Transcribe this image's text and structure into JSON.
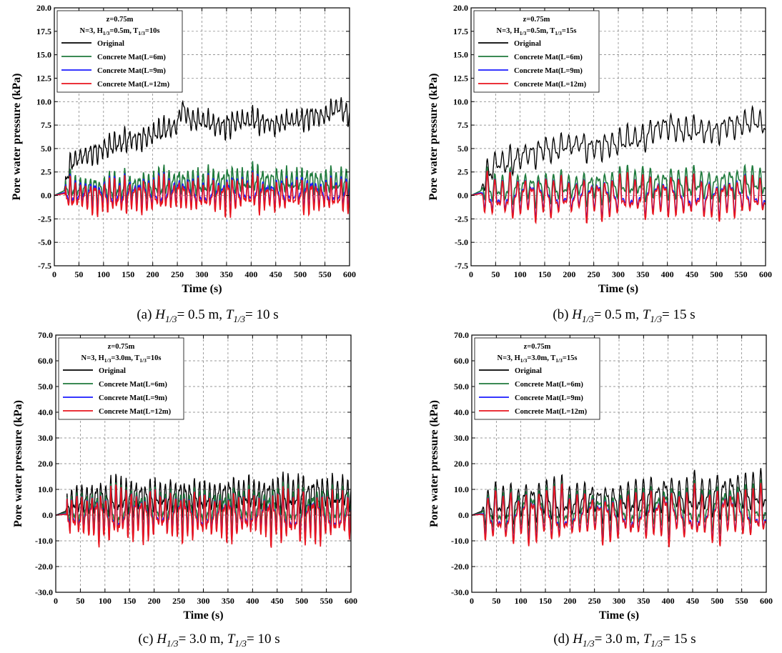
{
  "chart_data": [
    {
      "type": "line",
      "caption_id": "(a)",
      "caption_H": "0.5",
      "caption_T": "10",
      "xlabel": "Time (s)",
      "ylabel": "Pore water pressure (kPa)",
      "xlim": [
        0,
        600
      ],
      "ylim": [
        -7.5,
        20.0
      ],
      "xticks": [
        0,
        50,
        100,
        150,
        200,
        250,
        300,
        350,
        400,
        450,
        500,
        550,
        600
      ],
      "yticks": [
        "-7.5",
        "-5.0",
        "-2.5",
        "0.0",
        "2.5",
        "5.0",
        "7.5",
        "10.0",
        "12.5",
        "15.0",
        "17.5",
        "20.0"
      ],
      "grid": true,
      "legend_position": "top-left",
      "legend_header": [
        "z=0.75m",
        "N=3, H1/3=0.5m, T1/3=10s"
      ],
      "series": [
        {
          "name": "Original",
          "color": "#000000",
          "x": [
            0,
            20,
            25,
            35,
            50,
            75,
            100,
            125,
            150,
            175,
            200,
            225,
            250,
            260,
            275,
            300,
            325,
            350,
            375,
            400,
            425,
            450,
            475,
            500,
            525,
            550,
            575,
            600
          ],
          "y": [
            0,
            0.5,
            2.0,
            3.5,
            4.0,
            4.5,
            5.0,
            5.5,
            6.0,
            6.0,
            6.5,
            7.0,
            7.5,
            9.5,
            8.0,
            8.0,
            7.5,
            7.5,
            8.0,
            8.0,
            7.8,
            7.5,
            8.0,
            8.0,
            8.5,
            8.5,
            9.5,
            8.5
          ],
          "amplitude": 1.4
        },
        {
          "name": "Concrete Mat(L=6m)",
          "color": "#1f7a3c",
          "x": [
            0,
            20,
            25,
            50,
            100,
            150,
            200,
            250,
            300,
            350,
            400,
            450,
            500,
            550,
            600
          ],
          "y": [
            0,
            0.5,
            1.0,
            0.8,
            0.7,
            1.0,
            1.0,
            1.5,
            1.2,
            1.5,
            1.5,
            1.6,
            1.4,
            1.5,
            1.4
          ],
          "amplitude": 1.8
        },
        {
          "name": "Concrete Mat(L=9m)",
          "color": "#1a1aff",
          "x": [
            0,
            20,
            25,
            50,
            100,
            150,
            200,
            250,
            300,
            350,
            400,
            450,
            500,
            550,
            600
          ],
          "y": [
            0,
            0.3,
            0.3,
            0.2,
            0.1,
            0.3,
            0.2,
            0.5,
            0.2,
            0.3,
            0.4,
            0.3,
            0.3,
            0.3,
            0.3
          ],
          "amplitude": 1.9
        },
        {
          "name": "Concrete Mat(L=12m)",
          "color": "#e8141e",
          "x": [
            0,
            20,
            25,
            50,
            100,
            150,
            200,
            250,
            300,
            350,
            400,
            450,
            500,
            550,
            600
          ],
          "y": [
            0,
            0.2,
            0.0,
            -0.1,
            -0.2,
            0.0,
            -0.1,
            0.2,
            -0.1,
            0.0,
            0.1,
            0.0,
            -0.1,
            0.0,
            -0.1
          ],
          "amplitude": 2.0
        }
      ]
    },
    {
      "type": "line",
      "caption_id": "(b)",
      "caption_H": "0.5",
      "caption_T": "15",
      "xlabel": "Time (s)",
      "ylabel": "Pore water pressure (kPa)",
      "xlim": [
        0,
        600
      ],
      "ylim": [
        -7.5,
        20.0
      ],
      "xticks": [
        0,
        50,
        100,
        150,
        200,
        250,
        300,
        350,
        400,
        450,
        500,
        550,
        600
      ],
      "yticks": [
        "-7.5",
        "-5.0",
        "-2.5",
        "0.0",
        "2.5",
        "5.0",
        "7.5",
        "10.0",
        "12.5",
        "15.0",
        "17.5",
        "20.0"
      ],
      "grid": true,
      "legend_position": "top-left",
      "legend_header": [
        "z=0.75m",
        "N=3, H1/3=0.5m, T1/3=15s"
      ],
      "series": [
        {
          "name": "Original",
          "color": "#000000",
          "x": [
            0,
            20,
            25,
            50,
            75,
            100,
            125,
            150,
            175,
            200,
            225,
            250,
            275,
            300,
            325,
            350,
            375,
            400,
            425,
            450,
            475,
            500,
            525,
            550,
            575,
            600
          ],
          "y": [
            0,
            0.5,
            1.5,
            3.5,
            3.5,
            4.0,
            4.5,
            5.0,
            5.0,
            5.5,
            5.5,
            5.0,
            5.5,
            5.5,
            6.0,
            6.0,
            7.0,
            7.5,
            7.0,
            7.0,
            7.0,
            7.0,
            7.5,
            7.5,
            8.0,
            7.5
          ],
          "amplitude": 1.6
        },
        {
          "name": "Concrete Mat(L=6m)",
          "color": "#1f7a3c",
          "x": [
            0,
            20,
            25,
            50,
            100,
            150,
            200,
            250,
            300,
            350,
            400,
            450,
            500,
            550,
            600
          ],
          "y": [
            0,
            0.5,
            1.0,
            0.8,
            0.8,
            0.9,
            1.0,
            1.0,
            1.1,
            1.2,
            1.3,
            1.3,
            1.3,
            1.5,
            1.3
          ],
          "amplitude": 1.9
        },
        {
          "name": "Concrete Mat(L=9m)",
          "color": "#1a1aff",
          "x": [
            0,
            20,
            25,
            50,
            100,
            150,
            200,
            250,
            300,
            350,
            400,
            450,
            500,
            550,
            600
          ],
          "y": [
            0,
            0.3,
            0.2,
            0.0,
            0.0,
            0.1,
            0.1,
            0.0,
            0.0,
            0.0,
            0.2,
            0.1,
            0.0,
            0.2,
            0.0
          ],
          "amplitude": 2.2
        },
        {
          "name": "Concrete Mat(L=12m)",
          "color": "#e8141e",
          "x": [
            0,
            20,
            25,
            50,
            100,
            150,
            200,
            250,
            300,
            350,
            400,
            450,
            500,
            550,
            600
          ],
          "y": [
            0,
            0.2,
            0.0,
            -0.2,
            -0.2,
            -0.1,
            -0.1,
            -0.2,
            -0.2,
            -0.2,
            0.0,
            -0.1,
            -0.2,
            0.0,
            -0.2
          ],
          "amplitude": 2.4
        }
      ]
    },
    {
      "type": "line",
      "caption_id": "(c)",
      "caption_H": "3.0",
      "caption_T": "10",
      "xlabel": "Time (s)",
      "ylabel": "Pore water pressure (kPa)",
      "xlim": [
        0,
        600
      ],
      "ylim": [
        -30,
        70
      ],
      "xticks": [
        0,
        50,
        100,
        150,
        200,
        250,
        300,
        350,
        400,
        450,
        500,
        550,
        600
      ],
      "yticks": [
        "-30.0",
        "-20.0",
        "-10.0",
        "0.0",
        "10.0",
        "20.0",
        "30.0",
        "40.0",
        "50.0",
        "60.0",
        "70.0"
      ],
      "grid": true,
      "legend_position": "top-left",
      "legend_header": [
        "z=0.75m",
        "N=3, H1/3=3.0m, T1/3=10s"
      ],
      "series": [
        {
          "name": "Original",
          "color": "#000000",
          "x": [
            0,
            20,
            25,
            50,
            100,
            150,
            200,
            250,
            300,
            350,
            400,
            450,
            500,
            550,
            600
          ],
          "y": [
            0,
            1.5,
            5.0,
            6.0,
            6.5,
            7.0,
            7.0,
            7.5,
            7.0,
            8.0,
            8.0,
            8.0,
            8.0,
            8.5,
            8.0
          ],
          "amplitude": 8.0
        },
        {
          "name": "Concrete Mat(L=6m)",
          "color": "#1f7a3c",
          "x": [
            0,
            20,
            25,
            50,
            100,
            150,
            200,
            250,
            300,
            350,
            400,
            450,
            500,
            550,
            600
          ],
          "y": [
            0,
            1.0,
            2.0,
            2.0,
            2.0,
            2.5,
            2.5,
            3.0,
            2.5,
            3.0,
            3.0,
            3.0,
            2.5,
            3.0,
            2.5
          ],
          "amplitude": 9.0
        },
        {
          "name": "Concrete Mat(L=9m)",
          "color": "#1a1aff",
          "x": [
            0,
            20,
            25,
            50,
            100,
            150,
            200,
            250,
            300,
            350,
            400,
            450,
            500,
            550,
            600
          ],
          "y": [
            0,
            0.5,
            0.5,
            0.0,
            0.0,
            0.5,
            0.5,
            0.5,
            0.0,
            0.0,
            0.5,
            0.0,
            0.0,
            0.0,
            0.0
          ],
          "amplitude": 10.0
        },
        {
          "name": "Concrete Mat(L=12m)",
          "color": "#e8141e",
          "x": [
            0,
            20,
            25,
            50,
            100,
            150,
            200,
            250,
            300,
            350,
            400,
            450,
            500,
            550,
            600
          ],
          "y": [
            0,
            0.3,
            0.0,
            -0.5,
            -0.5,
            0.0,
            0.0,
            0.0,
            -0.5,
            -0.5,
            0.0,
            -0.5,
            -0.5,
            -0.5,
            -0.5
          ],
          "amplitude": 10.5
        }
      ]
    },
    {
      "type": "line",
      "caption_id": "(d)",
      "caption_H": "3.0",
      "caption_T": "15",
      "xlabel": "Time (s)",
      "ylabel": "Pore water pressure (kPa)",
      "xlim": [
        0,
        600
      ],
      "ylim": [
        -30,
        70
      ],
      "xticks": [
        0,
        50,
        100,
        150,
        200,
        250,
        300,
        350,
        400,
        450,
        500,
        550,
        600
      ],
      "yticks": [
        "-30.0",
        "-20.0",
        "-10.0",
        "0.0",
        "10.0",
        "20.0",
        "30.0",
        "40.0",
        "50.0",
        "60.0",
        "70.0"
      ],
      "grid": true,
      "legend_position": "top-left",
      "legend_header": [
        "z=0.75m",
        "N=3, H1/3=3.0m, T1/3=15s"
      ],
      "series": [
        {
          "name": "Original",
          "color": "#000000",
          "x": [
            0,
            20,
            25,
            50,
            100,
            150,
            200,
            250,
            300,
            350,
            400,
            450,
            500,
            550,
            600
          ],
          "y": [
            0,
            1.5,
            4.0,
            5.0,
            5.0,
            5.5,
            5.5,
            6.0,
            6.5,
            7.0,
            7.5,
            7.5,
            8.0,
            8.5,
            8.0
          ],
          "amplitude": 8.5
        },
        {
          "name": "Concrete Mat(L=6m)",
          "color": "#1f7a3c",
          "x": [
            0,
            20,
            25,
            50,
            100,
            150,
            200,
            250,
            300,
            350,
            400,
            450,
            500,
            550,
            600
          ],
          "y": [
            0,
            1.0,
            2.0,
            2.0,
            2.0,
            2.0,
            2.0,
            2.5,
            2.5,
            3.0,
            3.0,
            3.0,
            3.0,
            3.5,
            3.0
          ],
          "amplitude": 9.0
        },
        {
          "name": "Concrete Mat(L=9m)",
          "color": "#1a1aff",
          "x": [
            0,
            20,
            25,
            50,
            100,
            150,
            200,
            250,
            300,
            350,
            400,
            450,
            500,
            550,
            600
          ],
          "y": [
            0,
            0.5,
            0.5,
            0.0,
            0.0,
            0.0,
            0.0,
            0.5,
            0.5,
            0.5,
            0.5,
            0.5,
            0.5,
            0.5,
            0.5
          ],
          "amplitude": 10.0
        },
        {
          "name": "Concrete Mat(L=12m)",
          "color": "#e8141e",
          "x": [
            0,
            20,
            25,
            50,
            100,
            150,
            200,
            250,
            300,
            350,
            400,
            450,
            500,
            550,
            600
          ],
          "y": [
            0,
            0.3,
            0.0,
            -0.5,
            -0.5,
            -0.5,
            -0.5,
            0.0,
            0.0,
            0.0,
            0.0,
            0.0,
            0.0,
            0.0,
            0.0
          ],
          "amplitude": 10.5
        }
      ]
    }
  ]
}
